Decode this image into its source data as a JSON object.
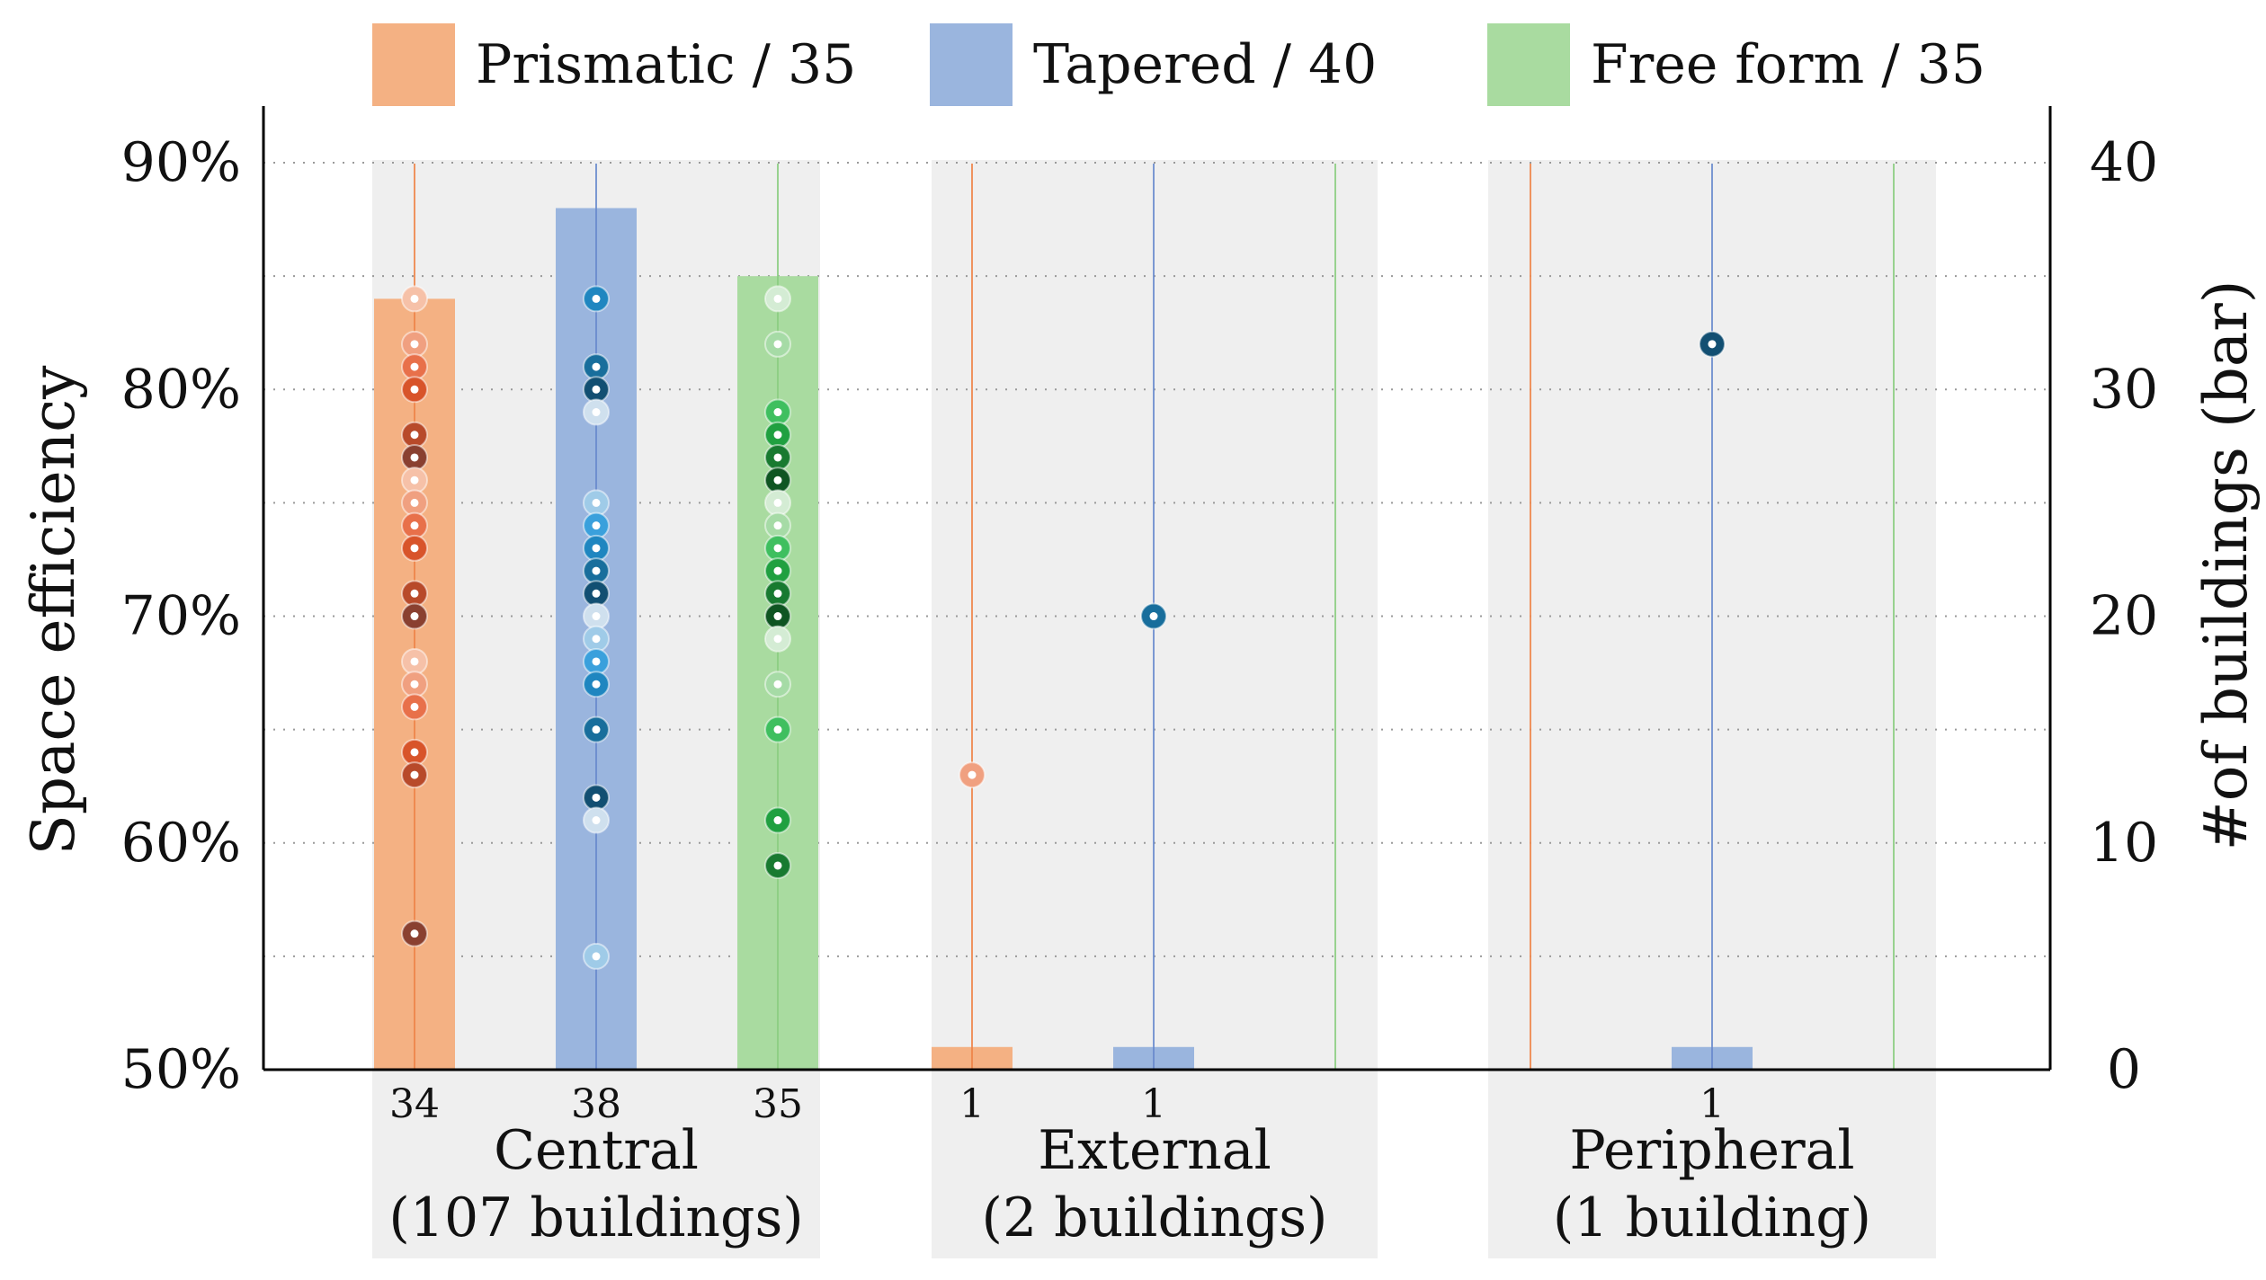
{
  "chart_data": {
    "type": "bar",
    "legend_position": "top",
    "legend": [
      {
        "key": "prismatic",
        "label": "Prismatic / 35",
        "color": "#f4b183"
      },
      {
        "key": "tapered",
        "label": "Tapered / 40",
        "color": "#9ab5de"
      },
      {
        "key": "freeform",
        "label": "Free form / 35",
        "color": "#a9dba0"
      }
    ],
    "left_axis": {
      "title": "Space efficiency",
      "range": [
        50,
        92.5
      ],
      "ticks": [
        {
          "value": 50,
          "label": "50%"
        },
        {
          "value": 60,
          "label": "60%"
        },
        {
          "value": 70,
          "label": "70%"
        },
        {
          "value": 80,
          "label": "80%"
        },
        {
          "value": 90,
          "label": "90%"
        }
      ]
    },
    "right_axis": {
      "title": "#of buildings (bar)",
      "range": [
        0,
        42.5
      ],
      "ticks": [
        {
          "value": 0,
          "label": "0"
        },
        {
          "value": 10,
          "label": "10"
        },
        {
          "value": 20,
          "label": "20"
        },
        {
          "value": 30,
          "label": "30"
        },
        {
          "value": 40,
          "label": "40"
        }
      ]
    },
    "gridlines": "dotted, every 5%",
    "groups": [
      {
        "name": "Central",
        "caption": "(107 buildings)",
        "bars": [
          {
            "series": "prismatic",
            "value": 34,
            "label": "34",
            "points": [
              84,
              82,
              81,
              80,
              78,
              77,
              76,
              75,
              74,
              73,
              71,
              70,
              68,
              67,
              66,
              64,
              63,
              56
            ]
          },
          {
            "series": "tapered",
            "value": 38,
            "label": "38",
            "points": [
              84,
              81,
              80,
              79,
              75,
              74,
              73,
              72,
              71,
              70,
              69,
              68,
              67,
              65,
              62,
              61,
              55
            ]
          },
          {
            "series": "freeform",
            "value": 35,
            "label": "35",
            "points": [
              84,
              82,
              79,
              78,
              77,
              76,
              75,
              74,
              73,
              72,
              71,
              70,
              69,
              67,
              65,
              61,
              59
            ]
          }
        ]
      },
      {
        "name": "External",
        "caption": "(2 buildings)",
        "bars": [
          {
            "series": "prismatic",
            "value": 1,
            "label": "1",
            "points": [
              63
            ]
          },
          {
            "series": "tapered",
            "value": 1,
            "label": "1",
            "points": [
              70
            ]
          },
          {
            "series": "freeform",
            "value": 0,
            "label": "",
            "points": []
          }
        ]
      },
      {
        "name": "Peripheral",
        "caption": "(1 building)",
        "bars": [
          {
            "series": "prismatic",
            "value": 0,
            "label": "",
            "points": []
          },
          {
            "series": "tapered",
            "value": 1,
            "label": "1",
            "points": [
              82
            ]
          },
          {
            "series": "freeform",
            "value": 0,
            "label": "",
            "points": []
          }
        ]
      }
    ]
  },
  "colors": {
    "line_prismatic": "#ef8a50",
    "line_tapered": "#6f8fcf",
    "line_freeform": "#8fcf85",
    "dot_prismatic": [
      "#f6c1a8",
      "#f0a080",
      "#e8704a",
      "#d8542a",
      "#b84a2a",
      "#8a4030"
    ],
    "dot_tapered": [
      "#cfe0ee",
      "#9fcbe8",
      "#3aa0dc",
      "#1f86c0",
      "#186e9c",
      "#124f72"
    ],
    "dot_freeform": [
      "#d4ecd4",
      "#a6dba6",
      "#3fbf5f",
      "#20a040",
      "#187a30",
      "#0f5522"
    ],
    "band": "#efefef",
    "grid": "#9a9a9a"
  }
}
